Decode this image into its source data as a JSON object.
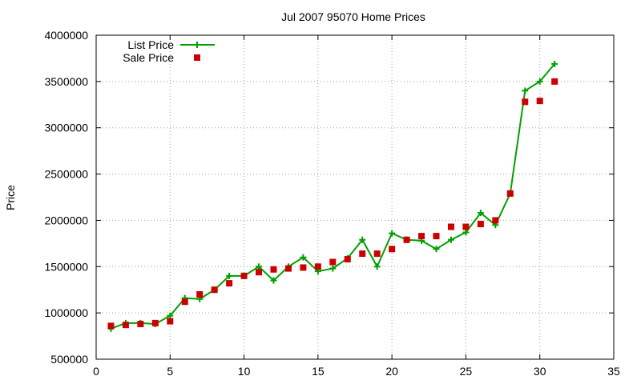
{
  "chart_data": {
    "type": "line",
    "title": "Jul 2007 95070 Home Prices",
    "xlabel": "",
    "ylabel": "Price",
    "xlim": [
      0,
      35
    ],
    "ylim": [
      500000,
      4000000
    ],
    "x_ticks": [
      0,
      5,
      10,
      15,
      20,
      25,
      30,
      35
    ],
    "y_ticks": [
      500000,
      1000000,
      1500000,
      2000000,
      2500000,
      3000000,
      3500000,
      4000000
    ],
    "grid": true,
    "legend_position": "top-left",
    "series": [
      {
        "name": "List Price",
        "style": "line-with-plus-markers",
        "color": "#00a000",
        "x": [
          1,
          2,
          3,
          4,
          5,
          6,
          7,
          8,
          9,
          10,
          11,
          12,
          13,
          14,
          15,
          16,
          17,
          18,
          19,
          20,
          21,
          22,
          23,
          24,
          25,
          26,
          27,
          28,
          29,
          30,
          31
        ],
        "y": [
          830000,
          890000,
          890000,
          880000,
          970000,
          1160000,
          1150000,
          1250000,
          1400000,
          1400000,
          1500000,
          1350000,
          1500000,
          1600000,
          1450000,
          1480000,
          1590000,
          1790000,
          1500000,
          1860000,
          1790000,
          1780000,
          1690000,
          1790000,
          1870000,
          2080000,
          1950000,
          2290000,
          3400000,
          3500000,
          3690000
        ]
      },
      {
        "name": "Sale Price",
        "style": "square-markers",
        "color": "#cc0000",
        "x": [
          1,
          2,
          3,
          4,
          5,
          6,
          7,
          8,
          9,
          10,
          11,
          12,
          13,
          14,
          15,
          16,
          17,
          18,
          19,
          20,
          21,
          22,
          23,
          24,
          25,
          26,
          27,
          28,
          29,
          30,
          31
        ],
        "y": [
          860000,
          870000,
          880000,
          890000,
          910000,
          1120000,
          1200000,
          1250000,
          1320000,
          1400000,
          1440000,
          1470000,
          1480000,
          1490000,
          1500000,
          1550000,
          1580000,
          1640000,
          1640000,
          1690000,
          1790000,
          1830000,
          1830000,
          1930000,
          1930000,
          1960000,
          2000000,
          2290000,
          3280000,
          3290000,
          3500000
        ]
      }
    ]
  }
}
